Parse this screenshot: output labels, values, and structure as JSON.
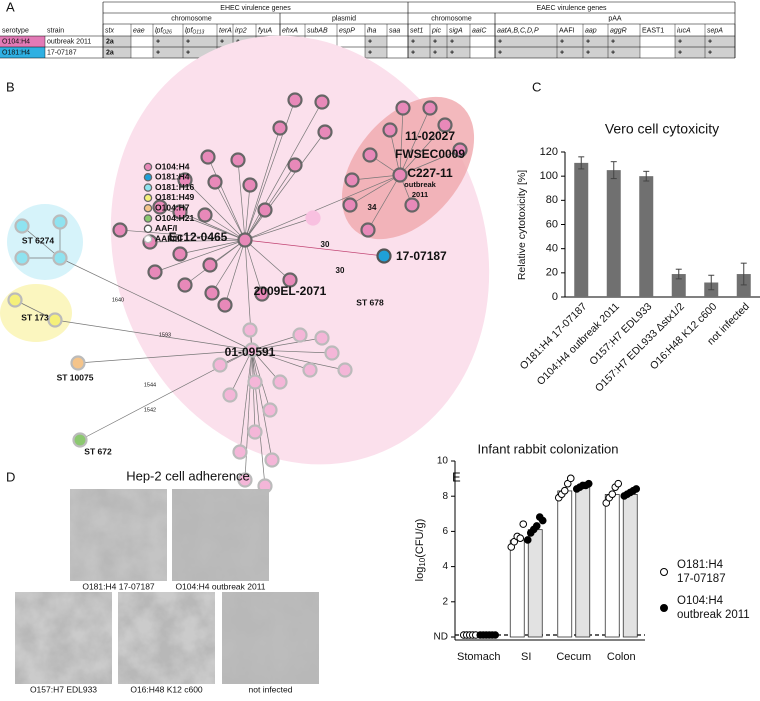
{
  "panel_labels": [
    "A",
    "B",
    "C",
    "D",
    "E"
  ],
  "table": {
    "groups": [
      "EHEC virulence genes",
      "EAEC virulence genes"
    ],
    "subgroups": [
      "chromosome",
      "plasmid",
      "chromosome",
      "pAA"
    ],
    "row_headers": [
      "serotype",
      "strain"
    ],
    "genes": [
      "stx",
      "eae",
      [
        "lpf",
        "O26"
      ],
      [
        "lpf",
        "O113"
      ],
      "terA",
      "irp2",
      "fyuA",
      "ehxA",
      "subAB",
      "espP",
      "iha",
      "saa",
      "set1",
      "pic",
      "sigA",
      "aaiC",
      "aatA,B,C,D,P",
      "AAFI",
      "aap",
      "aggR",
      "EAST1",
      "iucA",
      "sepA"
    ],
    "rows": [
      {
        "serotype": "O104:H4",
        "strain": "outbreak 2011",
        "color": "#e27ab6",
        "cells": [
          "2a",
          null,
          "+",
          "+",
          "+",
          "+",
          "+",
          null,
          null,
          null,
          "+",
          null,
          "+",
          "+",
          "+",
          null,
          "+",
          "+",
          "+",
          "+",
          null,
          "+",
          "+"
        ]
      },
      {
        "serotype": "O181:H4",
        "strain": "17-07187",
        "color": "#2fb0e2",
        "cells": [
          "2a",
          null,
          "+",
          "+",
          "+",
          "+",
          "+",
          null,
          null,
          null,
          "+",
          null,
          "+",
          "+",
          "+",
          null,
          "+",
          "+",
          "+",
          "+",
          null,
          "+",
          "+"
        ]
      }
    ]
  },
  "network": {
    "legend": [
      {
        "name": "O104:H4",
        "color": "#e889b9",
        "ring": "#666666"
      },
      {
        "name": "O181:H4",
        "color": "#1fa0d8",
        "ring": "#666666"
      },
      {
        "name": "O181:H16",
        "color": "#8fe3f0",
        "ring": "#666666"
      },
      {
        "name": "O181:H49",
        "color": "#f5f07a",
        "ring": "#666666"
      },
      {
        "name": "O104:H7",
        "color": "#f5c48a",
        "ring": "#666666"
      },
      {
        "name": "O104:H21",
        "color": "#8cc870",
        "ring": "#666666"
      },
      {
        "name": "AAF/I",
        "color": "#ffffff",
        "ring": "#555555"
      },
      {
        "name": "AAF/III",
        "color": "#ffffff",
        "ring": "#bbbbbb"
      }
    ],
    "strain_labels": [
      "11-02027",
      "FWSEC0009",
      "C227-11",
      "Ec12-0465",
      "17-07187",
      "2009EL-2071",
      "01-09591"
    ],
    "st_labels": [
      "ST 6274",
      "ST 173",
      "ST 10075",
      "ST 672",
      "ST 678"
    ],
    "annotation": "outbreak 2011",
    "edge_labels": [
      "30",
      "34",
      "30",
      "1640",
      "1593",
      "1544",
      "1542"
    ]
  },
  "chart_data": [
    {
      "type": "bar",
      "title": "Vero cell cytoxicity",
      "ylabel": "Relative cytotoxicity [%]",
      "categories": [
        "O181:H4 17-07187",
        "O104:H4 outbreak 2011",
        "O157:H7 EDL933",
        "O157:H7 EDL933 Δstx1/2",
        "O16:H48 K12 c600",
        "not infected"
      ],
      "values": [
        111,
        105,
        100,
        19,
        12,
        19
      ],
      "errors": [
        5,
        7,
        4,
        4,
        6,
        9
      ],
      "color": "#707070",
      "ylim": [
        0,
        120
      ],
      "yticks": [
        0,
        20,
        40,
        60,
        80,
        100,
        120
      ]
    },
    {
      "type": "dotbar",
      "title": "Infant rabbit colonization",
      "ylabel": [
        "log",
        "10",
        "(CFU/g)"
      ],
      "categories": [
        "Stomach",
        "SI",
        "Cecum",
        "Colon"
      ],
      "series": [
        {
          "name": "O181:H4 17-07187",
          "color": "#ffffff",
          "bar_color": "#ffffff",
          "values": [
            0,
            5.5,
            8.3,
            8.1
          ],
          "points": [
            [
              0,
              0,
              0,
              0,
              0
            ],
            [
              5.0,
              5.3,
              5.6,
              5.5,
              6.3
            ],
            [
              7.8,
              8.0,
              8.2,
              8.6,
              8.9
            ],
            [
              7.5,
              7.8,
              8.0,
              8.4,
              8.6
            ]
          ]
        },
        {
          "name": "O104:H4 outbreak 2011",
          "color": "#000000",
          "bar_color": "#e2e2e2",
          "values": [
            0,
            6.1,
            8.5,
            8.1
          ],
          "points": [
            [
              0,
              0,
              0,
              0,
              0,
              0
            ],
            [
              5.4,
              5.8,
              6.0,
              6.2,
              6.7,
              6.5
            ],
            [
              8.3,
              8.4,
              8.5,
              8.5,
              8.6
            ],
            [
              7.9,
              8.0,
              8.1,
              8.2,
              8.3
            ]
          ]
        }
      ],
      "ylim": [
        0,
        10
      ],
      "yticks": [
        {
          "value": 0,
          "label": "ND"
        },
        2,
        4,
        6,
        8,
        10
      ]
    }
  ],
  "images": {
    "title": "Hep-2 cell adherence",
    "captions": [
      "O181:H4  17-07187",
      "O104:H4  outbreak 2011",
      "O157:H7  EDL933",
      "O16:H48  K12 c600",
      "not infected"
    ]
  }
}
